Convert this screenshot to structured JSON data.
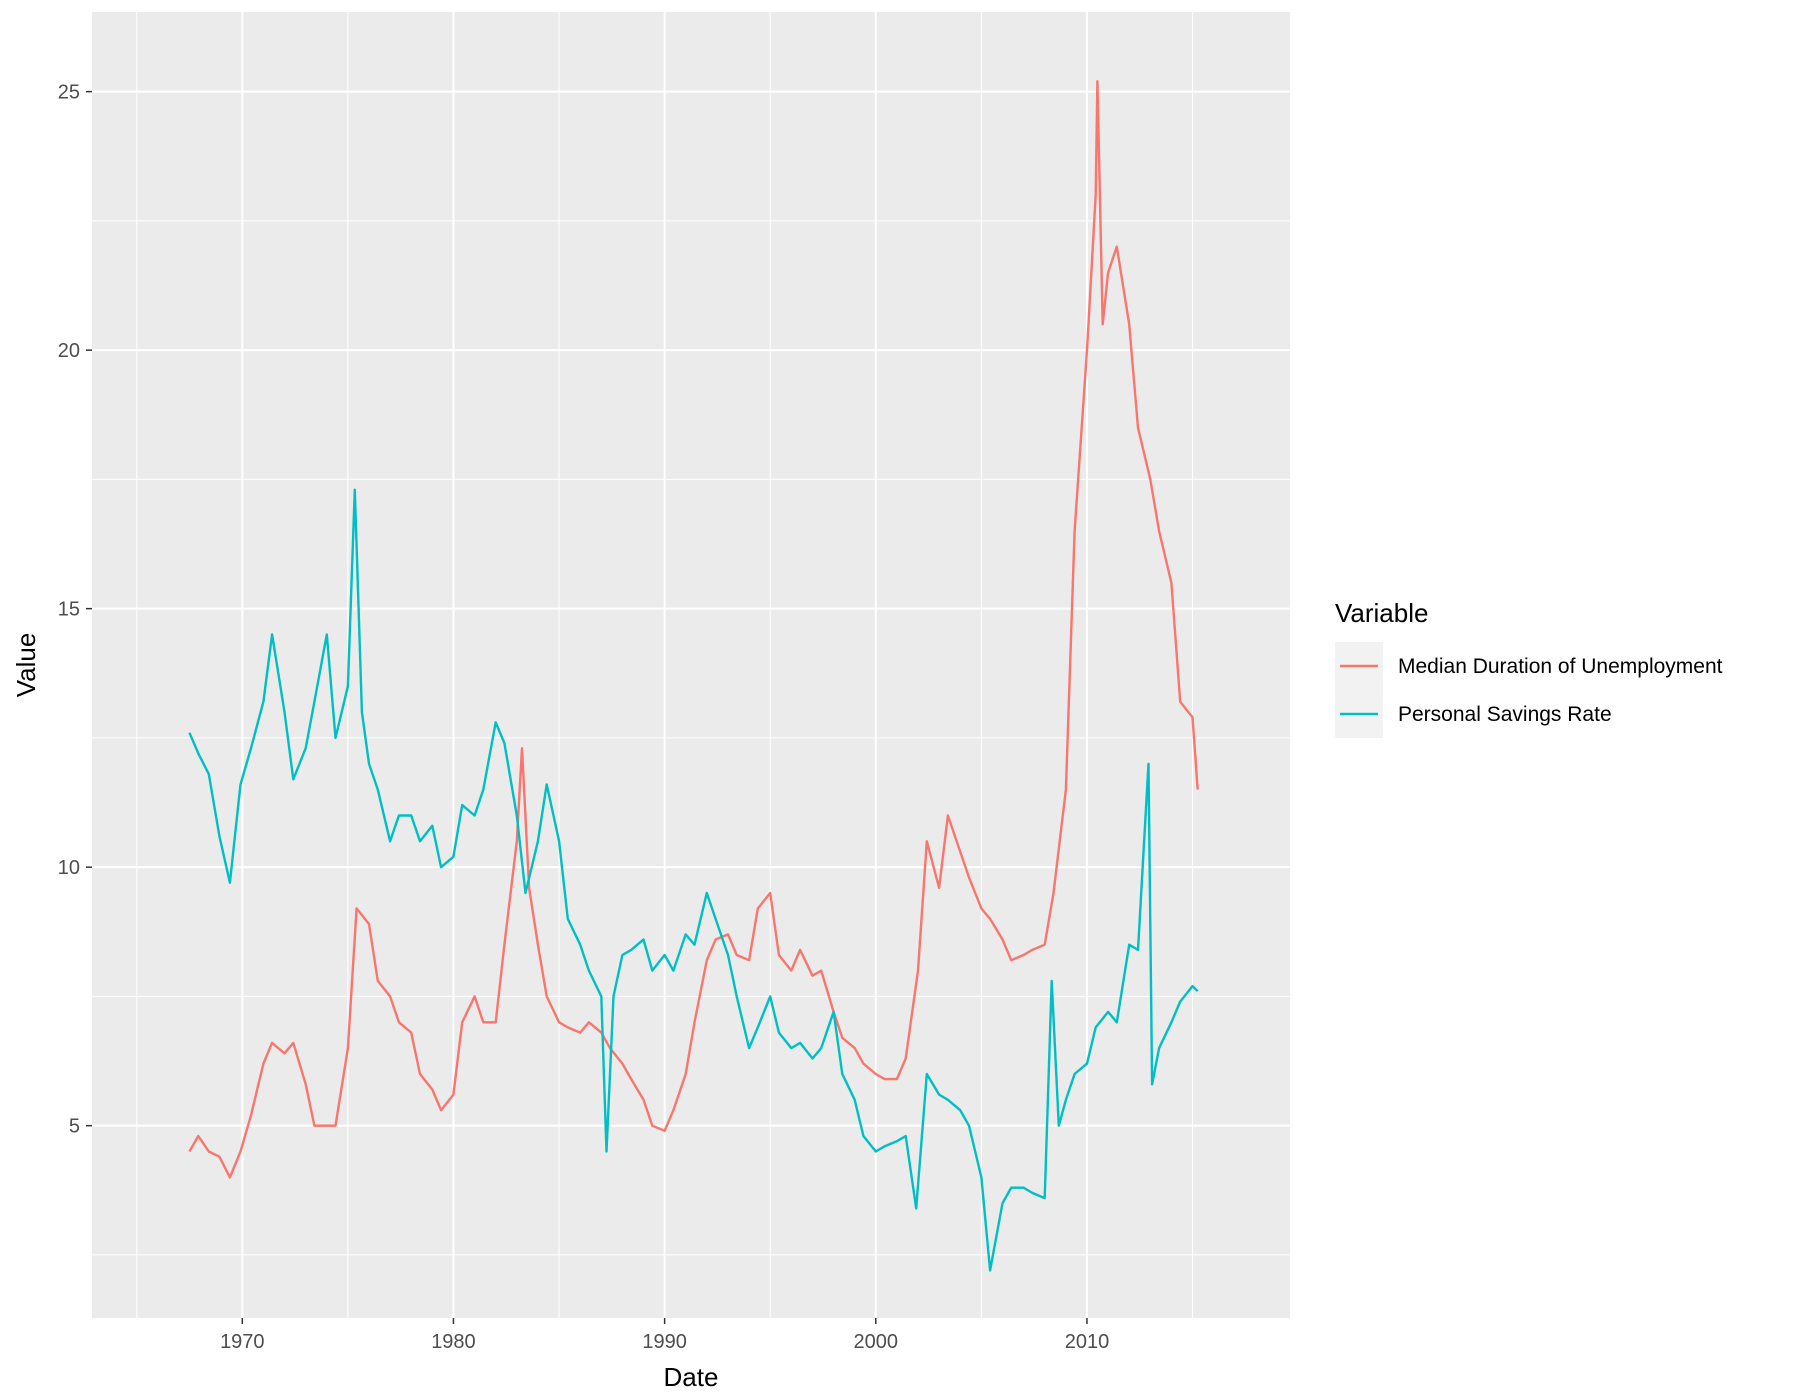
{
  "chart_data": {
    "type": "line",
    "xlabel": "Date",
    "ylabel": "Value",
    "x_ticks": [
      "1970",
      "1980",
      "1990",
      "2000",
      "2010"
    ],
    "y_ticks": [
      "5",
      "10",
      "15",
      "20",
      "25"
    ],
    "xlim": [
      "1962-11-19",
      "2019-08-14"
    ],
    "ylim": [
      1.28,
      26.54
    ],
    "grid": true,
    "legend": {
      "title": "Variable",
      "placement": "right",
      "entries": [
        "Median Duration of Unemployment",
        "Personal Savings Rate"
      ]
    },
    "series": [
      {
        "name": "Median Duration of Unemployment",
        "color": "#F8766D",
        "points": [
          [
            "1967-07",
            4.5
          ],
          [
            "1967-12",
            4.8
          ],
          [
            "1968-06",
            4.5
          ],
          [
            "1968-12",
            4.4
          ],
          [
            "1969-06",
            4.0
          ],
          [
            "1969-12",
            4.5
          ],
          [
            "1970-06",
            5.2
          ],
          [
            "1971-01",
            6.2
          ],
          [
            "1971-06",
            6.6
          ],
          [
            "1972-01",
            6.4
          ],
          [
            "1972-06",
            6.6
          ],
          [
            "1973-01",
            5.8
          ],
          [
            "1973-06",
            5.0
          ],
          [
            "1974-01",
            5.0
          ],
          [
            "1974-06",
            5.0
          ],
          [
            "1975-01",
            6.5
          ],
          [
            "1975-06",
            9.2
          ],
          [
            "1976-01",
            8.9
          ],
          [
            "1976-06",
            7.8
          ],
          [
            "1977-01",
            7.5
          ],
          [
            "1977-06",
            7.0
          ],
          [
            "1978-01",
            6.8
          ],
          [
            "1978-06",
            6.0
          ],
          [
            "1979-01",
            5.7
          ],
          [
            "1979-06",
            5.3
          ],
          [
            "1980-01",
            5.6
          ],
          [
            "1980-06",
            7.0
          ],
          [
            "1981-01",
            7.5
          ],
          [
            "1981-06",
            7.0
          ],
          [
            "1982-01",
            7.0
          ],
          [
            "1982-06",
            8.5
          ],
          [
            "1983-01",
            10.5
          ],
          [
            "1983-04",
            12.3
          ],
          [
            "1983-08",
            9.6
          ],
          [
            "1984-01",
            8.5
          ],
          [
            "1984-06",
            7.5
          ],
          [
            "1985-01",
            7.0
          ],
          [
            "1985-06",
            6.9
          ],
          [
            "1986-01",
            6.8
          ],
          [
            "1986-06",
            7.0
          ],
          [
            "1987-01",
            6.8
          ],
          [
            "1987-06",
            6.5
          ],
          [
            "1988-01",
            6.2
          ],
          [
            "1988-06",
            5.9
          ],
          [
            "1989-01",
            5.5
          ],
          [
            "1989-06",
            5.0
          ],
          [
            "1990-01",
            4.9
          ],
          [
            "1990-06",
            5.3
          ],
          [
            "1991-01",
            6.0
          ],
          [
            "1991-06",
            7.0
          ],
          [
            "1992-01",
            8.2
          ],
          [
            "1992-06",
            8.6
          ],
          [
            "1993-01",
            8.7
          ],
          [
            "1993-06",
            8.3
          ],
          [
            "1994-01",
            8.2
          ],
          [
            "1994-06",
            9.2
          ],
          [
            "1995-01",
            9.5
          ],
          [
            "1995-06",
            8.3
          ],
          [
            "1996-01",
            8.0
          ],
          [
            "1996-06",
            8.4
          ],
          [
            "1997-01",
            7.9
          ],
          [
            "1997-06",
            8.0
          ],
          [
            "1998-01",
            7.2
          ],
          [
            "1998-06",
            6.7
          ],
          [
            "1999-01",
            6.5
          ],
          [
            "1999-06",
            6.2
          ],
          [
            "2000-01",
            6.0
          ],
          [
            "2000-06",
            5.9
          ],
          [
            "2001-01",
            5.9
          ],
          [
            "2001-06",
            6.3
          ],
          [
            "2002-01",
            8.0
          ],
          [
            "2002-06",
            10.5
          ],
          [
            "2003-01",
            9.6
          ],
          [
            "2003-06",
            11.0
          ],
          [
            "2004-01",
            10.3
          ],
          [
            "2004-06",
            9.8
          ],
          [
            "2005-01",
            9.2
          ],
          [
            "2005-06",
            9.0
          ],
          [
            "2006-01",
            8.6
          ],
          [
            "2006-06",
            8.2
          ],
          [
            "2007-01",
            8.3
          ],
          [
            "2007-06",
            8.4
          ],
          [
            "2008-01",
            8.5
          ],
          [
            "2008-06",
            9.5
          ],
          [
            "2009-01",
            11.5
          ],
          [
            "2009-06",
            16.5
          ],
          [
            "2010-01",
            20.0
          ],
          [
            "2010-06",
            23.0
          ],
          [
            "2010-07",
            25.2
          ],
          [
            "2010-10",
            20.5
          ],
          [
            "2011-01",
            21.5
          ],
          [
            "2011-06",
            22.0
          ],
          [
            "2012-01",
            20.5
          ],
          [
            "2012-06",
            18.5
          ],
          [
            "2013-01",
            17.5
          ],
          [
            "2013-06",
            16.5
          ],
          [
            "2014-01",
            15.5
          ],
          [
            "2014-06",
            13.2
          ],
          [
            "2015-01",
            12.9
          ],
          [
            "2015-04",
            11.5
          ]
        ]
      },
      {
        "name": "Personal Savings Rate",
        "color": "#00BFC4",
        "points": [
          [
            "1967-07",
            12.6
          ],
          [
            "1967-12",
            12.2
          ],
          [
            "1968-06",
            11.8
          ],
          [
            "1968-12",
            10.6
          ],
          [
            "1969-06",
            9.7
          ],
          [
            "1969-12",
            11.6
          ],
          [
            "1970-06",
            12.3
          ],
          [
            "1971-01",
            13.2
          ],
          [
            "1971-06",
            14.5
          ],
          [
            "1972-01",
            13.0
          ],
          [
            "1972-06",
            11.7
          ],
          [
            "1973-01",
            12.3
          ],
          [
            "1973-06",
            13.2
          ],
          [
            "1974-01",
            14.5
          ],
          [
            "1974-06",
            12.5
          ],
          [
            "1975-01",
            13.5
          ],
          [
            "1975-05",
            17.3
          ],
          [
            "1975-09",
            13.0
          ],
          [
            "1976-01",
            12.0
          ],
          [
            "1976-06",
            11.5
          ],
          [
            "1977-01",
            10.5
          ],
          [
            "1977-06",
            11.0
          ],
          [
            "1978-01",
            11.0
          ],
          [
            "1978-06",
            10.5
          ],
          [
            "1979-01",
            10.8
          ],
          [
            "1979-06",
            10.0
          ],
          [
            "1980-01",
            10.2
          ],
          [
            "1980-06",
            11.2
          ],
          [
            "1981-01",
            11.0
          ],
          [
            "1981-06",
            11.5
          ],
          [
            "1982-01",
            12.8
          ],
          [
            "1982-06",
            12.4
          ],
          [
            "1983-01",
            11.0
          ],
          [
            "1983-06",
            9.5
          ],
          [
            "1984-01",
            10.5
          ],
          [
            "1984-06",
            11.6
          ],
          [
            "1985-01",
            10.5
          ],
          [
            "1985-06",
            9.0
          ],
          [
            "1986-01",
            8.5
          ],
          [
            "1986-06",
            8.0
          ],
          [
            "1987-01",
            7.5
          ],
          [
            "1987-04",
            4.5
          ],
          [
            "1987-08",
            7.5
          ],
          [
            "1988-01",
            8.3
          ],
          [
            "1988-06",
            8.4
          ],
          [
            "1989-01",
            8.6
          ],
          [
            "1989-06",
            8.0
          ],
          [
            "1990-01",
            8.3
          ],
          [
            "1990-06",
            8.0
          ],
          [
            "1991-01",
            8.7
          ],
          [
            "1991-06",
            8.5
          ],
          [
            "1992-01",
            9.5
          ],
          [
            "1992-06",
            9.0
          ],
          [
            "1993-01",
            8.3
          ],
          [
            "1993-06",
            7.5
          ],
          [
            "1994-01",
            6.5
          ],
          [
            "1994-06",
            6.9
          ],
          [
            "1995-01",
            7.5
          ],
          [
            "1995-06",
            6.8
          ],
          [
            "1996-01",
            6.5
          ],
          [
            "1996-06",
            6.6
          ],
          [
            "1997-01",
            6.3
          ],
          [
            "1997-06",
            6.5
          ],
          [
            "1998-01",
            7.2
          ],
          [
            "1998-06",
            6.0
          ],
          [
            "1999-01",
            5.5
          ],
          [
            "1999-06",
            4.8
          ],
          [
            "2000-01",
            4.5
          ],
          [
            "2000-06",
            4.6
          ],
          [
            "2001-01",
            4.7
          ],
          [
            "2001-06",
            4.8
          ],
          [
            "2001-12",
            3.4
          ],
          [
            "2002-06",
            6.0
          ],
          [
            "2003-01",
            5.6
          ],
          [
            "2003-06",
            5.5
          ],
          [
            "2004-01",
            5.3
          ],
          [
            "2004-06",
            5.0
          ],
          [
            "2005-01",
            4.0
          ],
          [
            "2005-06",
            2.2
          ],
          [
            "2006-01",
            3.5
          ],
          [
            "2006-06",
            3.8
          ],
          [
            "2007-01",
            3.8
          ],
          [
            "2007-06",
            3.7
          ],
          [
            "2008-01",
            3.6
          ],
          [
            "2008-05",
            7.8
          ],
          [
            "2008-09",
            5.0
          ],
          [
            "2009-01",
            5.5
          ],
          [
            "2009-06",
            6.0
          ],
          [
            "2010-01",
            6.2
          ],
          [
            "2010-06",
            6.9
          ],
          [
            "2011-01",
            7.2
          ],
          [
            "2011-06",
            7.0
          ],
          [
            "2012-01",
            8.5
          ],
          [
            "2012-06",
            8.4
          ],
          [
            "2012-12",
            12.0
          ],
          [
            "2013-02",
            5.8
          ],
          [
            "2013-06",
            6.5
          ],
          [
            "2014-01",
            7.0
          ],
          [
            "2014-06",
            7.4
          ],
          [
            "2015-01",
            7.7
          ],
          [
            "2015-04",
            7.6
          ]
        ]
      }
    ]
  }
}
